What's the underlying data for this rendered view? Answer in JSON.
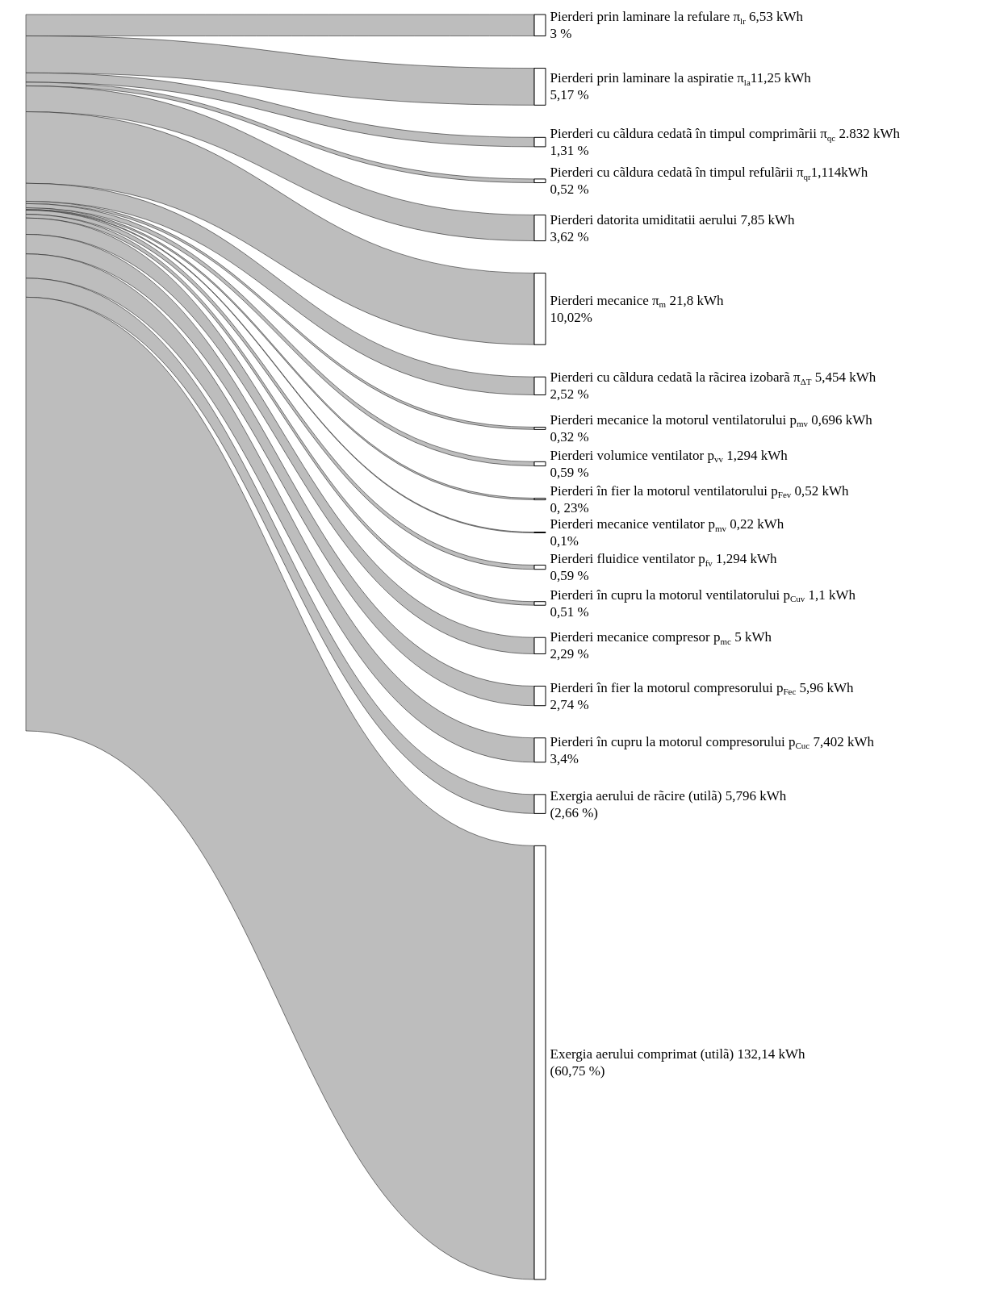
{
  "chart_data": {
    "type": "other",
    "color": "#bdbdbd",
    "categories": [
      "Pierderi prin laminare la refulare π$_{lr}$ 6,53 kWh",
      "Pierderi prin laminare la aspiratie π$_{la}$11,25 kWh",
      "Pierderi cu cãldura cedatã în timpul comprimãrii π$_{qc}$ 2.832 kWh",
      "Pierderi cu cãldura cedatã în timpul refulãrii π$_{qr}$1,114kWh",
      "Pierderi datorita umiditatii aerului 7,85 kWh",
      "Pierderi mecanice π$_{m}$ 21,8 kWh",
      "Pierderi cu cãldura cedatã la rãcirea izobarã π$_{ΔT}$ 5,454 kWh",
      "Pierderi mecanice la motorul ventilatorului p$_{mv}$ 0,696 kWh",
      "Pierderi volumice ventilator p$_{vv}$ 1,294 kWh",
      "Pierderi în fier la motorul ventilatorului p$_{Fev}$ 0,52 kWh",
      "Pierderi mecanice ventilator p$_{mv}$ 0,22 kWh",
      "Pierderi fluidice ventilator p$_{fv}$ 1,294 kWh",
      "Pierderi în cupru la motorul ventilatorului p$_{Cuv}$ 1,1 kWh",
      "Pierderi mecanice compresor p$_{mc}$ 5 kWh",
      "Pierderi în fier la motorul compresorului p$_{Fec}$ 5,96 kWh",
      "Pierderi în cupru la motorul compresorului p$_{Cuc}$ 7,402 kWh",
      "Exergia aerului de rãcire (utilã) 5,796 kWh",
      "Exergia aerului comprimat (utilã) 132,14 kWh"
    ],
    "values": [
      3,
      5.17,
      1.31,
      0.52,
      3.62,
      10.02,
      2.52,
      0.32,
      0.59,
      0.23,
      0.1,
      0.59,
      0.51,
      2.29,
      2.74,
      3.4,
      2.66,
      60.75
    ],
    "value_labels": [
      "3 %",
      "5,17 %",
      "1,31 %",
      "0,52 %",
      "3,62 %",
      "10,02%",
      "2,52 %",
      "0,32 %",
      "0,59 %",
      "0, 23%",
      "0,1%",
      "0,59 %",
      "0,51 %",
      "2,29 %",
      "2,74 %",
      "3,4%",
      "(2,66 %)",
      "(60,75 %)"
    ]
  }
}
